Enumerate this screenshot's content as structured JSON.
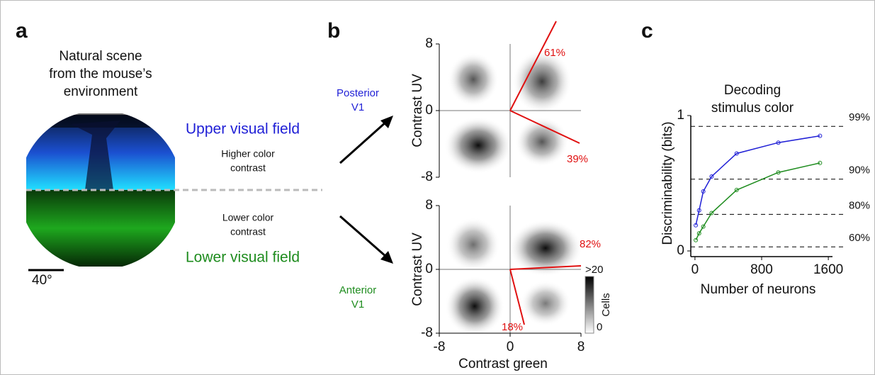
{
  "panel_a": {
    "label": "a",
    "title_lines": [
      "Natural scene",
      "from the mouse’s",
      "environment"
    ],
    "upper": "Upper visual field",
    "higher_lines": [
      "Higher color",
      "contrast"
    ],
    "lower_lines": [
      "Lower color",
      "contrast"
    ],
    "lower": "Lower visual field",
    "scale": "40°"
  },
  "panel_b": {
    "label": "b",
    "posterior_lines": [
      "Posterior",
      "V1"
    ],
    "anterior_lines": [
      "Anterior",
      "V1"
    ],
    "colorbar": {
      "title": "Cells",
      "max": ">20",
      "min": "0"
    }
  },
  "panel_c": {
    "label": "c"
  },
  "chart_data": [
    {
      "type": "histogram2d",
      "ylabel": "Contrast UV",
      "xlim": [
        -8,
        8
      ],
      "ylim": [
        -8,
        8
      ],
      "yticks": [
        -8,
        0,
        8
      ],
      "annotations": [
        "61%",
        "39%"
      ]
    },
    {
      "type": "histogram2d",
      "xlabel": "Contrast green",
      "ylabel": "Contrast UV",
      "xlim": [
        -8,
        8
      ],
      "ylim": [
        -8,
        8
      ],
      "xticks": [
        -8,
        0,
        8
      ],
      "yticks": [
        -8,
        0,
        8
      ],
      "annotations": [
        "82%",
        "18%"
      ]
    },
    {
      "type": "line",
      "title_lines": [
        "Decoding",
        "stimulus color"
      ],
      "xlabel": "Number of neurons",
      "ylabel": "Discriminability (bits)",
      "x": [
        10,
        50,
        100,
        200,
        500,
        1000,
        1500
      ],
      "series": [
        {
          "color": "#1f1fd6",
          "values": [
            0.19,
            0.3,
            0.44,
            0.55,
            0.72,
            0.8,
            0.85
          ]
        },
        {
          "color": "#1e8c1e",
          "values": [
            0.08,
            0.13,
            0.18,
            0.28,
            0.45,
            0.58,
            0.65
          ]
        }
      ],
      "xlim": [
        -50,
        1650
      ],
      "ylim": [
        0,
        1
      ],
      "xticks": [
        0,
        800,
        1600
      ],
      "yticks": [
        0,
        1
      ],
      "reference_lines": [
        {
          "value": 0.92,
          "label": "99%"
        },
        {
          "value": 0.53,
          "label": "90%"
        },
        {
          "value": 0.27,
          "label": "80%"
        },
        {
          "value": 0.03,
          "label": "60%"
        }
      ]
    }
  ]
}
